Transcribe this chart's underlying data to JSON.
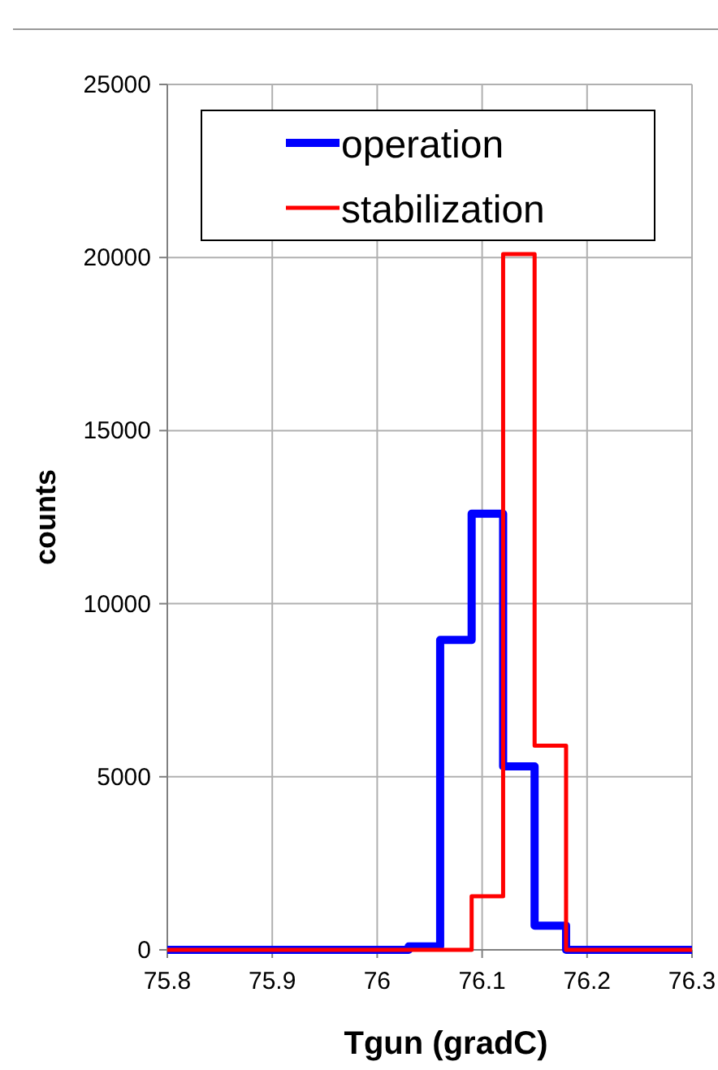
{
  "chart_data": {
    "type": "step",
    "xlabel": "Tgun (gradC)",
    "ylabel": "counts",
    "xlim": [
      75.8,
      76.3
    ],
    "xticks": [
      75.8,
      75.9,
      76,
      76.1,
      76.2,
      76.3
    ],
    "ylim": [
      0,
      25000
    ],
    "yticks": [
      0,
      5000,
      10000,
      15000,
      20000,
      25000
    ],
    "grid": true,
    "legend": "top",
    "marker": "none",
    "series": [
      {
        "name": "operation",
        "color": "#0000ff",
        "x": [
          75.8,
          76.03,
          76.06,
          76.09,
          76.12,
          76.15,
          76.18,
          76.3
        ],
        "values": [
          0,
          100,
          8950,
          12600,
          5300,
          700,
          0,
          0
        ]
      },
      {
        "name": "stabilization",
        "color": "#ff0000",
        "x": [
          75.8,
          76.09,
          76.12,
          76.15,
          76.18,
          76.3
        ],
        "values": [
          0,
          1550,
          20100,
          5900,
          0,
          0
        ]
      }
    ]
  }
}
